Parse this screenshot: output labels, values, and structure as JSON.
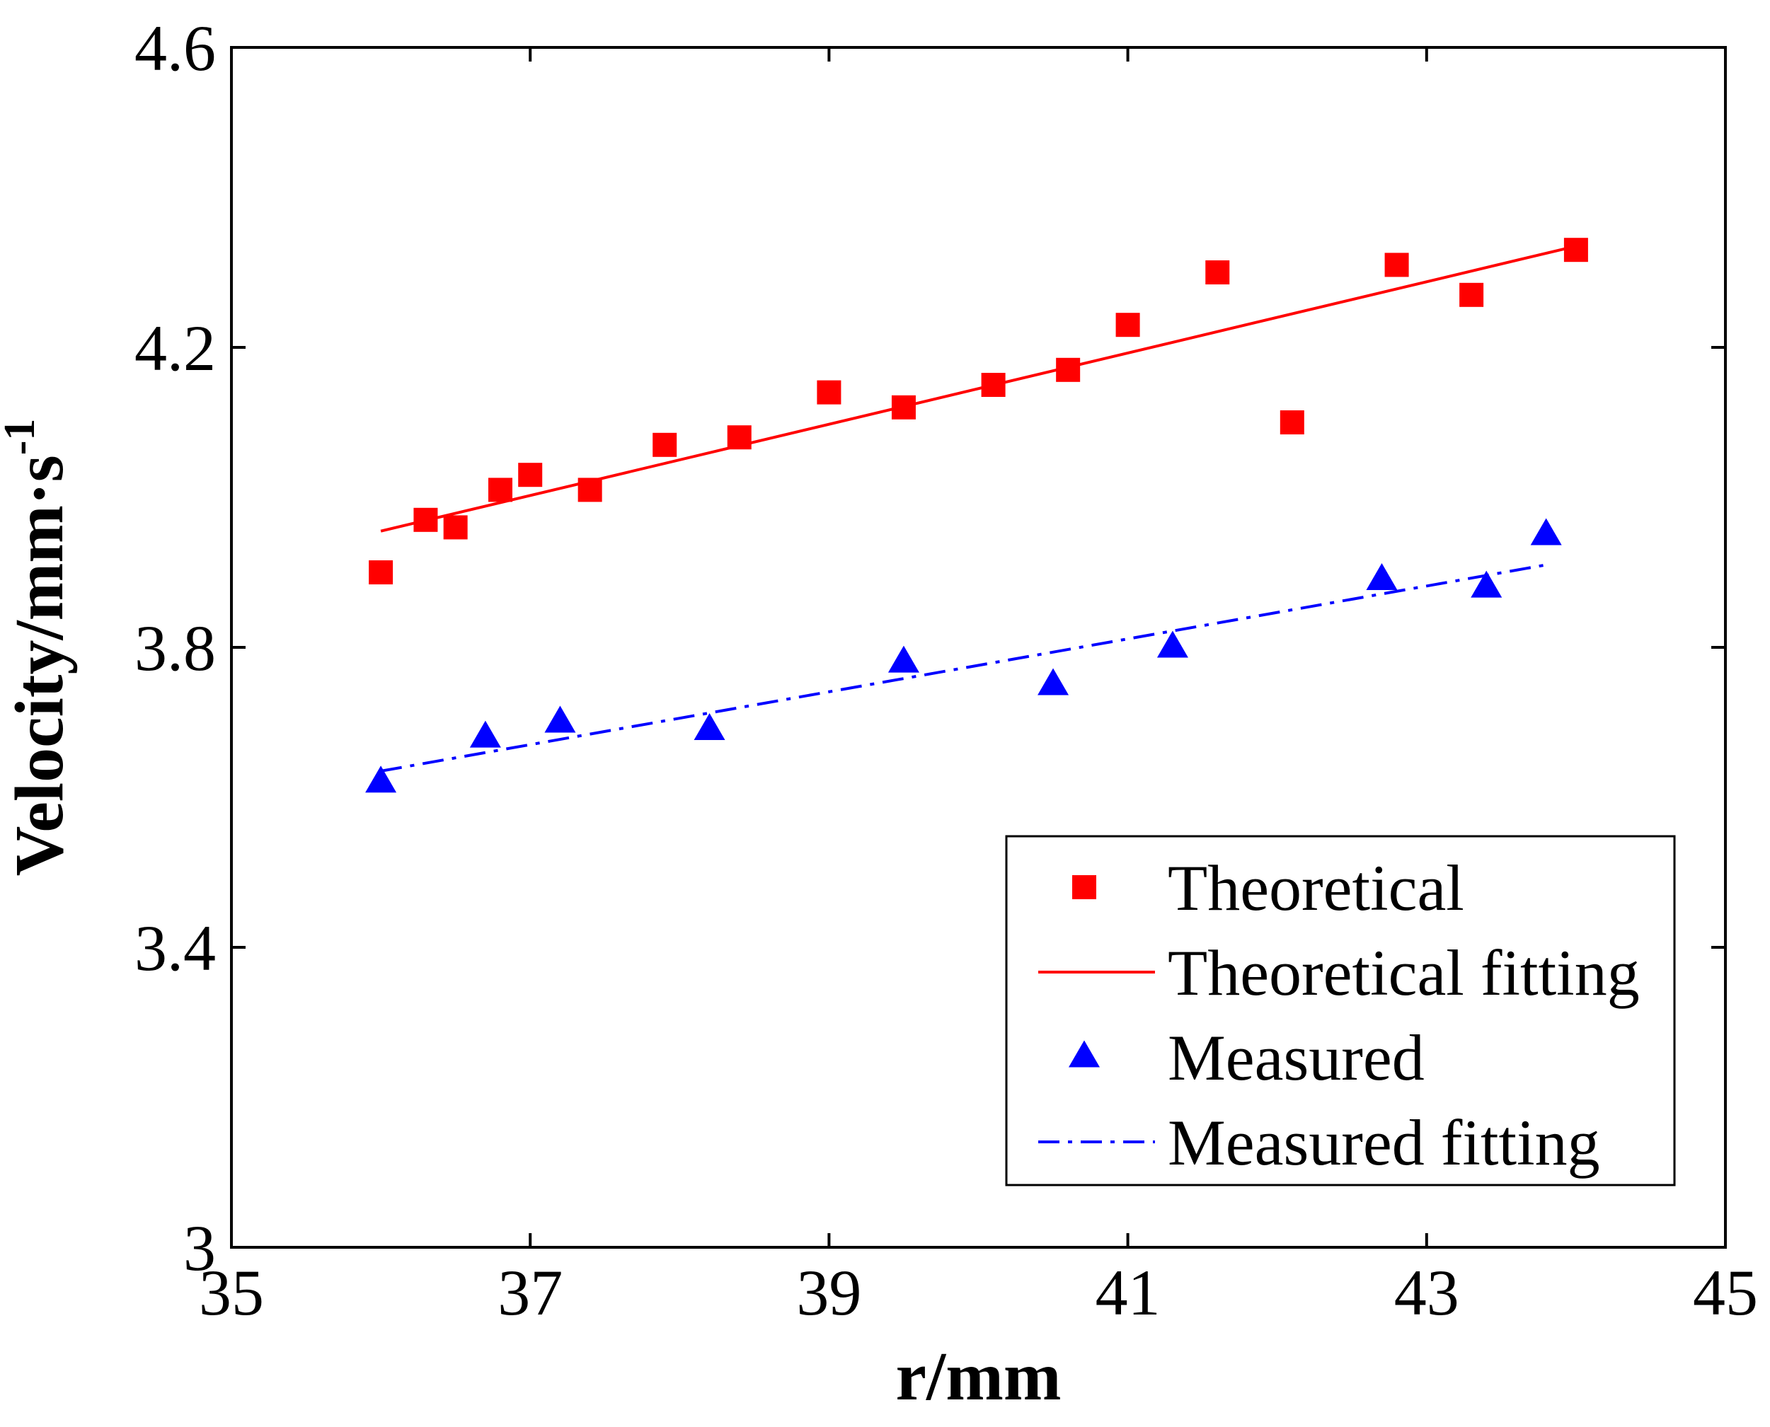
{
  "chart_data": {
    "type": "scatter",
    "title": "",
    "xlabel": "r/mm",
    "ylabel": "Velocity/mm·s",
    "ylabel_superscript": "-1",
    "xlim": [
      35,
      45
    ],
    "ylim": [
      3.0,
      4.6
    ],
    "xticks": [
      35,
      37,
      39,
      41,
      43,
      45
    ],
    "xtick_labels": [
      "35",
      "37",
      "39",
      "41",
      "43",
      "45"
    ],
    "yticks": [
      3.0,
      3.4,
      3.8,
      4.2,
      4.6
    ],
    "ytick_labels": [
      "3",
      "3.4",
      "3.8",
      "4.2",
      "4.6"
    ],
    "grid": false,
    "legend_position": "bottom-right",
    "series": [
      {
        "name": "Theoretical",
        "kind": "markers",
        "marker": "square",
        "color": "#ff0000",
        "x": [
          36.0,
          36.3,
          36.5,
          36.8,
          37.0,
          37.4,
          37.9,
          38.4,
          39.0,
          39.5,
          40.1,
          40.6,
          41.0,
          41.6,
          42.1,
          42.8,
          43.3,
          44.0
        ],
        "y": [
          3.9,
          3.97,
          3.96,
          4.01,
          4.03,
          4.01,
          4.07,
          4.08,
          4.14,
          4.12,
          4.15,
          4.17,
          4.23,
          4.3,
          4.1,
          4.31,
          4.27,
          4.33
        ]
      },
      {
        "name": "Theoretical fitting",
        "kind": "line",
        "dash": "solid",
        "color": "#ff0000",
        "x": [
          36.0,
          44.0
        ],
        "y": [
          3.955,
          4.335
        ]
      },
      {
        "name": "Measured",
        "kind": "markers",
        "marker": "triangle",
        "color": "#0000ff",
        "x": [
          36.0,
          36.7,
          37.2,
          38.2,
          39.5,
          40.5,
          41.3,
          42.7,
          43.4,
          43.8
        ],
        "y": [
          3.62,
          3.68,
          3.7,
          3.69,
          3.78,
          3.75,
          3.8,
          3.89,
          3.88,
          3.95
        ]
      },
      {
        "name": "Measured fitting",
        "kind": "line",
        "dash": "dashdot",
        "color": "#0000ff",
        "x": [
          36.0,
          43.8
        ],
        "y": [
          3.635,
          3.91
        ]
      }
    ]
  }
}
